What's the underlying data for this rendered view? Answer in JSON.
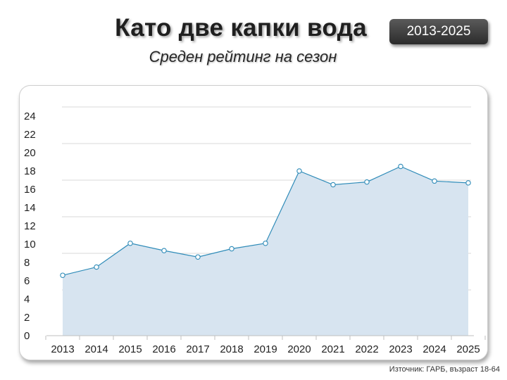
{
  "header": {
    "title": "Като две капки вода",
    "subtitle": "Среден рейтинг на сезон",
    "badge": "2013-2025"
  },
  "footer": {
    "source": "Източник: ГАРБ, възраст 18-64"
  },
  "colors": {
    "line": "#2e8bb8",
    "area": "#d7e4f0",
    "marker_fill": "#ffffff",
    "grid": "#d9d9d9"
  },
  "chart_data": {
    "type": "area",
    "title": "Среден рейтинг на сезон",
    "categories": [
      "2013",
      "2014",
      "2015",
      "2016",
      "2017",
      "2018",
      "2019",
      "2020",
      "2021",
      "2022",
      "2023",
      "2024",
      "2025"
    ],
    "series": [
      {
        "values": [
          6.6,
          7.5,
          10.1,
          9.3,
          8.6,
          9.5,
          10.1,
          18.0,
          16.5,
          16.8,
          18.5,
          16.9,
          16.7
        ]
      }
    ],
    "ylim": [
      0,
      25
    ],
    "yticks": [
      0,
      2,
      4,
      6,
      8,
      10,
      12,
      14,
      16,
      18,
      20,
      22,
      24
    ],
    "grid": true,
    "markers": true,
    "legend": "none"
  }
}
